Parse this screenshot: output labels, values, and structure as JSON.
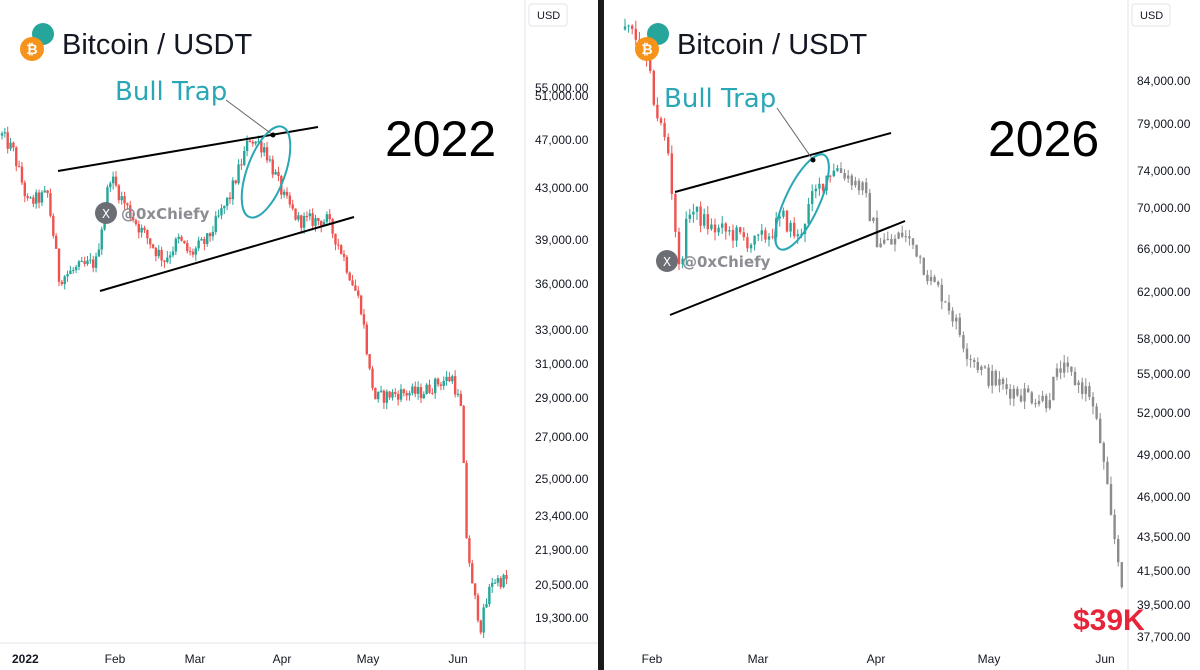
{
  "chart_data": [
    {
      "type": "candlestick",
      "title": "Bitcoin / USDT",
      "annotation_year": "2022",
      "pattern_label": "Bull Trap",
      "watermark": "@0xChiefy",
      "currency": "USD",
      "y_ticks": [
        "55,000.00",
        "51,000.00",
        "47,000.00",
        "43,000.00",
        "39,000.00",
        "36,000.00",
        "33,000.00",
        "31,000.00",
        "29,000.00",
        "27,000.00",
        "25,000.00",
        "23,400.00",
        "21,900.00",
        "20,500.00",
        "19,300.00"
      ],
      "x_ticks": [
        "2022",
        "Feb",
        "Mar",
        "Apr",
        "May",
        "Jun"
      ],
      "colors": {
        "up": "#26a69a",
        "down": "#ef5350",
        "label": "#2aa7b5"
      },
      "close_path": [
        [
          "2022-01-01",
          47400
        ],
        [
          "2022-01-05",
          46000
        ],
        [
          "2022-01-10",
          41800
        ],
        [
          "2022-01-17",
          42500
        ],
        [
          "2022-01-21",
          36400
        ],
        [
          "2022-01-27",
          37000
        ],
        [
          "2022-02-03",
          37500
        ],
        [
          "2022-02-08",
          44000
        ],
        [
          "2022-02-12",
          42200
        ],
        [
          "2022-02-18",
          40000
        ],
        [
          "2022-02-24",
          38300
        ],
        [
          "2022-02-27",
          37700
        ],
        [
          "2022-03-04",
          39000
        ],
        [
          "2022-03-08",
          38000
        ],
        [
          "2022-03-14",
          39000
        ],
        [
          "2022-03-22",
          42400
        ],
        [
          "2022-03-29",
          47200
        ],
        [
          "2022-04-03",
          46400
        ],
        [
          "2022-04-10",
          42200
        ],
        [
          "2022-04-15",
          40500
        ],
        [
          "2022-04-25",
          40500
        ],
        [
          "2022-04-30",
          38300
        ],
        [
          "2022-05-07",
          34500
        ],
        [
          "2022-05-10",
          30500
        ],
        [
          "2022-05-12",
          29000
        ],
        [
          "2022-05-20",
          29300
        ],
        [
          "2022-05-28",
          29300
        ],
        [
          "2022-06-03",
          29900
        ],
        [
          "2022-06-08",
          30200
        ],
        [
          "2022-06-11",
          28400
        ],
        [
          "2022-06-13",
          22500
        ],
        [
          "2022-06-15",
          20400
        ],
        [
          "2022-06-18",
          19000
        ],
        [
          "2022-06-22",
          20700
        ],
        [
          "2022-06-27",
          20700
        ]
      ]
    },
    {
      "type": "candlestick",
      "title": "Bitcoin / USDT",
      "annotation_year": "2026",
      "pattern_label": "Bull Trap",
      "watermark": "@0xChiefy",
      "currency": "USD",
      "price_callout": "$39K",
      "y_ticks": [
        "84,000.00",
        "79,000.00",
        "74,000.00",
        "70,000.00",
        "66,000.00",
        "62,000.00",
        "58,000.00",
        "55,000.00",
        "52,000.00",
        "49,000.00",
        "46,000.00",
        "43,500.00",
        "41,500.00",
        "39,500.00",
        "37,700.00"
      ],
      "x_ticks": [
        "Feb",
        "Mar",
        "Apr",
        "May",
        "Jun"
      ],
      "colors": {
        "up": "#26a69a",
        "down": "#ef5350",
        "projection": "#8c8c8c"
      },
      "close_path": [
        [
          "2026-01-21",
          90000
        ],
        [
          "2026-01-24",
          89000
        ],
        [
          "2026-01-27",
          86000
        ],
        [
          "2026-01-30",
          80000
        ],
        [
          "2026-02-02",
          76000
        ],
        [
          "2026-02-05",
          64000
        ],
        [
          "2026-02-08",
          70000
        ],
        [
          "2026-02-14",
          68000
        ],
        [
          "2026-02-20",
          67500
        ],
        [
          "2026-02-26",
          66500
        ],
        [
          "2026-03-02",
          67500
        ],
        [
          "2026-03-06",
          69000
        ],
        [
          "2026-03-10",
          67000
        ],
        [
          "2026-03-14",
          71000
        ],
        [
          "2026-03-18",
          73500
        ],
        [
          "2026-03-20",
          74500
        ],
        [
          "2026-03-24",
          73500
        ],
        [
          "2026-03-28",
          72000
        ],
        [
          "2026-04-01",
          67000
        ],
        [
          "2026-04-05",
          66500
        ],
        [
          "2026-04-08",
          67500
        ],
        [
          "2026-04-12",
          66000
        ],
        [
          "2026-04-16",
          63000
        ],
        [
          "2026-04-20",
          61500
        ],
        [
          "2026-04-26",
          57000
        ],
        [
          "2026-05-01",
          55000
        ],
        [
          "2026-05-06",
          54000
        ],
        [
          "2026-05-12",
          53500
        ],
        [
          "2026-05-18",
          53000
        ],
        [
          "2026-05-22",
          55500
        ],
        [
          "2026-05-26",
          54500
        ],
        [
          "2026-05-30",
          53500
        ],
        [
          "2026-06-02",
          50000
        ],
        [
          "2026-06-05",
          44500
        ],
        [
          "2026-06-08",
          41000
        ],
        [
          "2026-06-10",
          41500
        ]
      ]
    }
  ]
}
